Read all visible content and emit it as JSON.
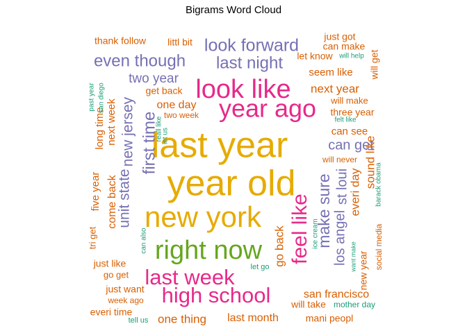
{
  "chart_data": {
    "type": "wordcloud",
    "title": "Bigrams Word Cloud",
    "colors": {
      "teal": "#1b9e77",
      "orange": "#d95f02",
      "purple": "#7570b3",
      "pink": "#e7298a",
      "green": "#66a61e",
      "gold": "#e6ab02"
    },
    "words": [
      {
        "text": "last year",
        "color": "gold"
      },
      {
        "text": "year old",
        "color": "gold"
      },
      {
        "text": "new york",
        "color": "gold"
      },
      {
        "text": "look like",
        "color": "pink"
      },
      {
        "text": "year ago",
        "color": "pink"
      },
      {
        "text": "right now",
        "color": "green"
      },
      {
        "text": "last week",
        "color": "pink"
      },
      {
        "text": "high school",
        "color": "pink"
      },
      {
        "text": "feel like",
        "color": "pink"
      },
      {
        "text": "look forward",
        "color": "purple"
      },
      {
        "text": "even though",
        "color": "purple"
      },
      {
        "text": "last night",
        "color": "purple"
      },
      {
        "text": "first time",
        "color": "purple"
      },
      {
        "text": "make sure",
        "color": "purple"
      },
      {
        "text": "new jersey",
        "color": "purple"
      },
      {
        "text": "unit state",
        "color": "purple"
      },
      {
        "text": "los angel",
        "color": "purple"
      },
      {
        "text": "st loui",
        "color": "purple"
      },
      {
        "text": "can get",
        "color": "purple"
      },
      {
        "text": "two year",
        "color": "purple"
      },
      {
        "text": "next year",
        "color": "orange"
      },
      {
        "text": "everi day",
        "color": "orange"
      },
      {
        "text": "sound like",
        "color": "orange"
      },
      {
        "text": "go back",
        "color": "orange"
      },
      {
        "text": "come back",
        "color": "orange"
      },
      {
        "text": "one thing",
        "color": "orange"
      },
      {
        "text": "san francisco",
        "color": "orange"
      },
      {
        "text": "one day",
        "color": "orange"
      },
      {
        "text": "last month",
        "color": "orange"
      },
      {
        "text": "can see",
        "color": "orange"
      },
      {
        "text": "seem like",
        "color": "orange"
      },
      {
        "text": "three year",
        "color": "orange"
      },
      {
        "text": "next week",
        "color": "orange"
      },
      {
        "text": "long time",
        "color": "orange"
      },
      {
        "text": "five year",
        "color": "orange"
      },
      {
        "text": "thank follow",
        "color": "orange"
      },
      {
        "text": "littl bit",
        "color": "orange"
      },
      {
        "text": "just got",
        "color": "orange"
      },
      {
        "text": "can make",
        "color": "orange"
      },
      {
        "text": "let know",
        "color": "orange"
      },
      {
        "text": "will get",
        "color": "orange"
      },
      {
        "text": "get back",
        "color": "orange"
      },
      {
        "text": "will make",
        "color": "orange"
      },
      {
        "text": "two week",
        "color": "orange"
      },
      {
        "text": "tri get",
        "color": "orange"
      },
      {
        "text": "just like",
        "color": "orange"
      },
      {
        "text": "go get",
        "color": "orange"
      },
      {
        "text": "just want",
        "color": "orange"
      },
      {
        "text": "week ago",
        "color": "orange"
      },
      {
        "text": "everi time",
        "color": "orange"
      },
      {
        "text": "will take",
        "color": "orange"
      },
      {
        "text": "mani peopl",
        "color": "orange"
      },
      {
        "text": "new year",
        "color": "orange"
      },
      {
        "text": "social media",
        "color": "orange"
      },
      {
        "text": "will never",
        "color": "orange"
      },
      {
        "text": "will help",
        "color": "teal"
      },
      {
        "text": "felt like",
        "color": "teal"
      },
      {
        "text": "past year",
        "color": "teal"
      },
      {
        "text": "san diego",
        "color": "teal"
      },
      {
        "text": "reall like",
        "color": "teal"
      },
      {
        "text": "let us",
        "color": "teal"
      },
      {
        "text": "barack obama",
        "color": "teal"
      },
      {
        "text": "ice cream",
        "color": "teal"
      },
      {
        "text": "can also",
        "color": "teal"
      },
      {
        "text": "want make",
        "color": "teal"
      },
      {
        "text": "let go",
        "color": "teal"
      },
      {
        "text": "mother day",
        "color": "teal"
      },
      {
        "text": "tell us",
        "color": "teal"
      }
    ]
  }
}
